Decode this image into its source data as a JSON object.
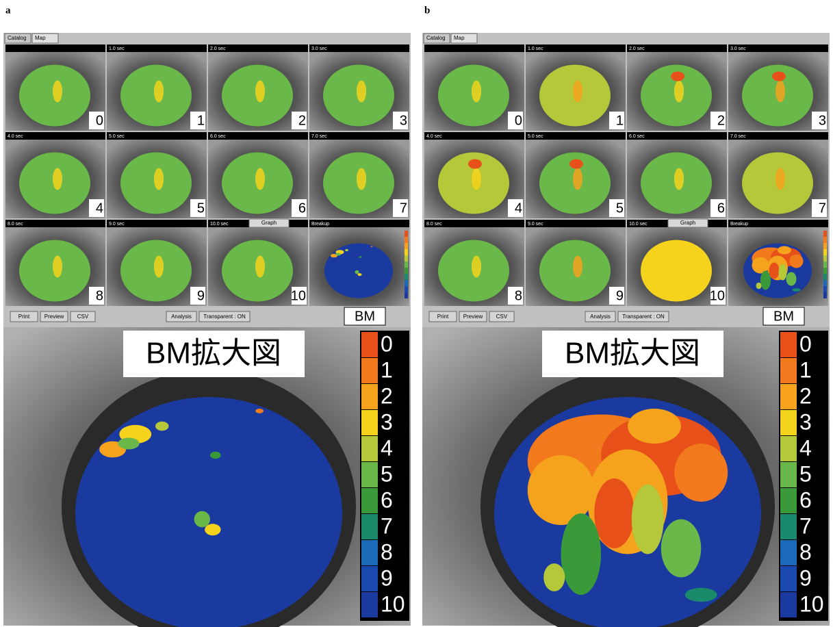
{
  "panels": [
    {
      "label": "a",
      "tabs": [
        "Catalog",
        "Map"
      ],
      "frames": [
        {
          "number": "0"
        },
        {
          "number": "1",
          "time": "1.0 sec"
        },
        {
          "number": "2",
          "time": "2.0 sec"
        },
        {
          "number": "3",
          "time": "3.0 sec"
        },
        {
          "number": "4",
          "time": "4.0 sec"
        },
        {
          "number": "5",
          "time": "5.0 sec"
        },
        {
          "number": "6",
          "time": "6.0 sec"
        },
        {
          "number": "7",
          "time": "7.0 sec"
        },
        {
          "number": "8",
          "time": "8.0 sec"
        },
        {
          "number": "9",
          "time": "9.0 sec"
        },
        {
          "number": "10",
          "time": "10.0 sec"
        }
      ],
      "graph_button": "Graph",
      "breakup_title": "Breakup",
      "buttons": [
        "Print",
        "Preview",
        "CSV",
        "Analysis",
        "Transparent : ON"
      ],
      "bm_label": "BM",
      "zoom_title": "BM拡大図"
    },
    {
      "label": "b",
      "tabs": [
        "Catalog",
        "Map"
      ],
      "frames": [
        {
          "number": "0"
        },
        {
          "number": "1",
          "time": "1.0 sec"
        },
        {
          "number": "2",
          "time": "2.0 sec"
        },
        {
          "number": "3",
          "time": "3.0 sec"
        },
        {
          "number": "4",
          "time": "4.0 sec"
        },
        {
          "number": "5",
          "time": "5.0 sec"
        },
        {
          "number": "6",
          "time": "6.0 sec"
        },
        {
          "number": "7",
          "time": "7.0 sec"
        },
        {
          "number": "8",
          "time": "8.0 sec"
        },
        {
          "number": "9",
          "time": "9.0 sec"
        },
        {
          "number": "10",
          "time": "10.0 sec"
        }
      ],
      "graph_button": "Graph",
      "breakup_title": "Breakup",
      "buttons": [
        "Print",
        "Preview",
        "CSV",
        "Analysis",
        "Transparent : ON"
      ],
      "bm_label": "BM",
      "zoom_title": "BM拡大図"
    }
  ],
  "legend": {
    "levels": [
      "0",
      "1",
      "2",
      "3",
      "4",
      "5",
      "6",
      "7",
      "8",
      "9",
      "10"
    ],
    "colors": [
      "#e8501a",
      "#f27a1c",
      "#f5a21c",
      "#f5d21c",
      "#b5c83a",
      "#6ab84a",
      "#3a9a3a",
      "#1a8a6a",
      "#1a6ab8",
      "#1a4ab0",
      "#1a3aa0"
    ]
  }
}
